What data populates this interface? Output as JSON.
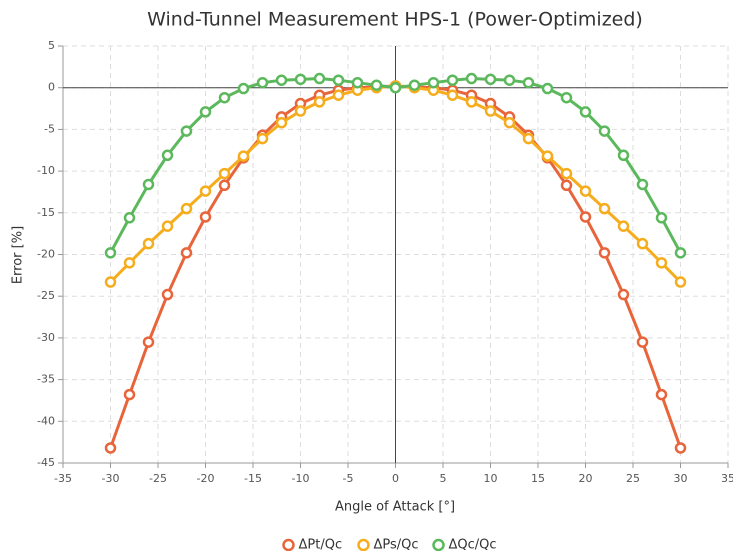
{
  "chart_data": {
    "type": "line",
    "title": "Wind-Tunnel Measurement HPS-1 (Power-Optimized)",
    "x_label": "Angle of Attack [°]",
    "y_label": "Error [%]",
    "x": [
      -30,
      -28,
      -26,
      -24,
      -22,
      -20,
      -18,
      -16,
      -14,
      -12,
      -10,
      -8,
      -6,
      -4,
      -2,
      0,
      2,
      4,
      6,
      8,
      10,
      12,
      14,
      16,
      18,
      20,
      22,
      24,
      26,
      28,
      30
    ],
    "series": [
      {
        "name": "ΔPt/Qc",
        "color": "#e8643a",
        "values": [
          -43.2,
          -36.8,
          -30.5,
          -24.8,
          -19.8,
          -15.5,
          -11.7,
          -8.4,
          -5.7,
          -3.5,
          -1.9,
          -0.9,
          -0.3,
          0,
          0.1,
          0.2,
          0.1,
          0,
          -0.3,
          -0.9,
          -1.9,
          -3.5,
          -5.7,
          -8.4,
          -11.7,
          -15.5,
          -19.8,
          -24.8,
          -30.5,
          -36.8,
          -43.2
        ]
      },
      {
        "name": "ΔPs/Qc",
        "color": "#f5ad1e",
        "values": [
          -23.3,
          -21.0,
          -18.7,
          -16.6,
          -14.5,
          -12.4,
          -10.3,
          -8.2,
          -6.1,
          -4.2,
          -2.8,
          -1.7,
          -0.9,
          -0.3,
          0,
          0.2,
          0,
          -0.3,
          -0.9,
          -1.7,
          -2.8,
          -4.2,
          -6.1,
          -8.2,
          -10.3,
          -12.4,
          -14.5,
          -16.6,
          -18.7,
          -21.0,
          -23.3
        ]
      },
      {
        "name": "ΔQc/Qc",
        "color": "#5cb85c",
        "values": [
          -19.8,
          -15.6,
          -11.6,
          -8.1,
          -5.2,
          -2.9,
          -1.2,
          -0.1,
          0.6,
          0.9,
          1.0,
          1.1,
          0.9,
          0.6,
          0.3,
          0,
          0.3,
          0.6,
          0.9,
          1.1,
          1.0,
          0.9,
          0.6,
          -0.1,
          -1.2,
          -2.9,
          -5.2,
          -8.1,
          -11.6,
          -15.6,
          -19.8
        ]
      }
    ],
    "xlim": [
      -35,
      35
    ],
    "xticks": [
      -35,
      -30,
      -25,
      -20,
      -15,
      -10,
      -5,
      0,
      5,
      10,
      15,
      20,
      25,
      30,
      35
    ],
    "ylim": [
      -45,
      5
    ],
    "yticks": [
      -45,
      -40,
      -35,
      -30,
      -25,
      -20,
      -15,
      -10,
      -5,
      0,
      5
    ],
    "grid": true,
    "legend": "bottom"
  }
}
